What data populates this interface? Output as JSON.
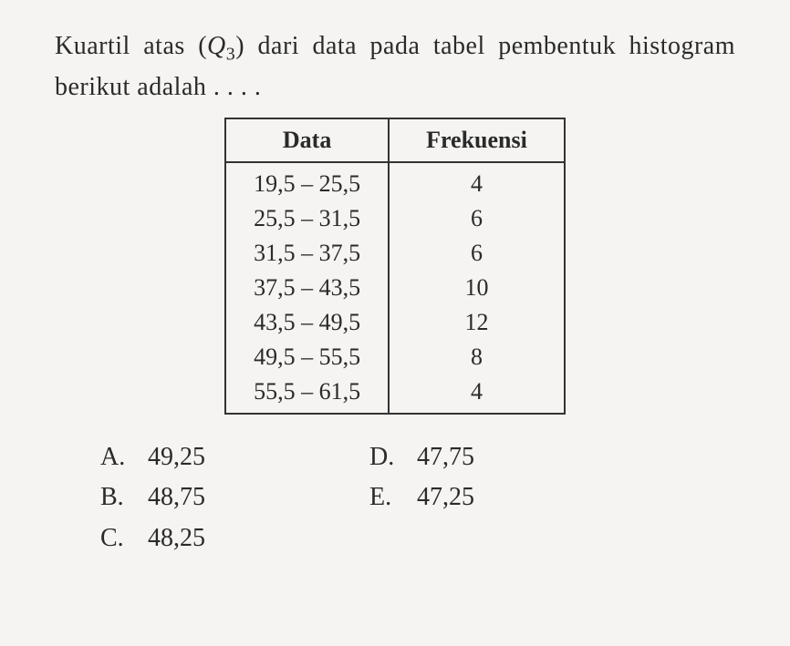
{
  "question": {
    "line1_pre": "Kuartil atas (",
    "symbol_base": "Q",
    "symbol_sub": "3",
    "line1_post": ") dari data pada tabel",
    "line2": "pembentuk histogram berikut adalah . . . ."
  },
  "table": {
    "header_data": "Data",
    "header_freq": "Frekuensi",
    "rows": [
      {
        "data": "19,5 – 25,5",
        "freq": "4"
      },
      {
        "data": "25,5 – 31,5",
        "freq": "6"
      },
      {
        "data": "31,5 – 37,5",
        "freq": "6"
      },
      {
        "data": "37,5 – 43,5",
        "freq": "10"
      },
      {
        "data": "43,5 – 49,5",
        "freq": "12"
      },
      {
        "data": "49,5 – 55,5",
        "freq": "8"
      },
      {
        "data": "55,5 – 61,5",
        "freq": "4"
      }
    ]
  },
  "options": {
    "a": {
      "label": "A.",
      "value": "49,25"
    },
    "b": {
      "label": "B.",
      "value": "48,75"
    },
    "c": {
      "label": "C.",
      "value": "48,25"
    },
    "d": {
      "label": "D.",
      "value": "47,75"
    },
    "e": {
      "label": "E.",
      "value": "47,25"
    }
  },
  "style": {
    "background_color": "#f5f4f2",
    "text_color": "#2a2a2a",
    "border_color": "#333333",
    "font_family": "Times New Roman",
    "question_fontsize": 28,
    "table_fontsize": 26,
    "option_fontsize": 28
  }
}
